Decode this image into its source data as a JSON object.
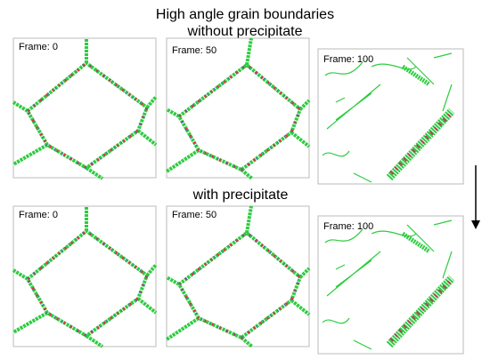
{
  "header": {
    "title_lines": [
      "High angle grain boundaries",
      "without precipitate"
    ]
  },
  "rows": [
    {
      "heading": null,
      "frames": [
        "Frame: 0",
        "Frame: 50",
        "Frame: 100"
      ]
    },
    {
      "heading": "with precipitate",
      "frames": [
        "Frame: 0",
        "Frame: 50",
        "Frame: 100"
      ]
    }
  ]
}
